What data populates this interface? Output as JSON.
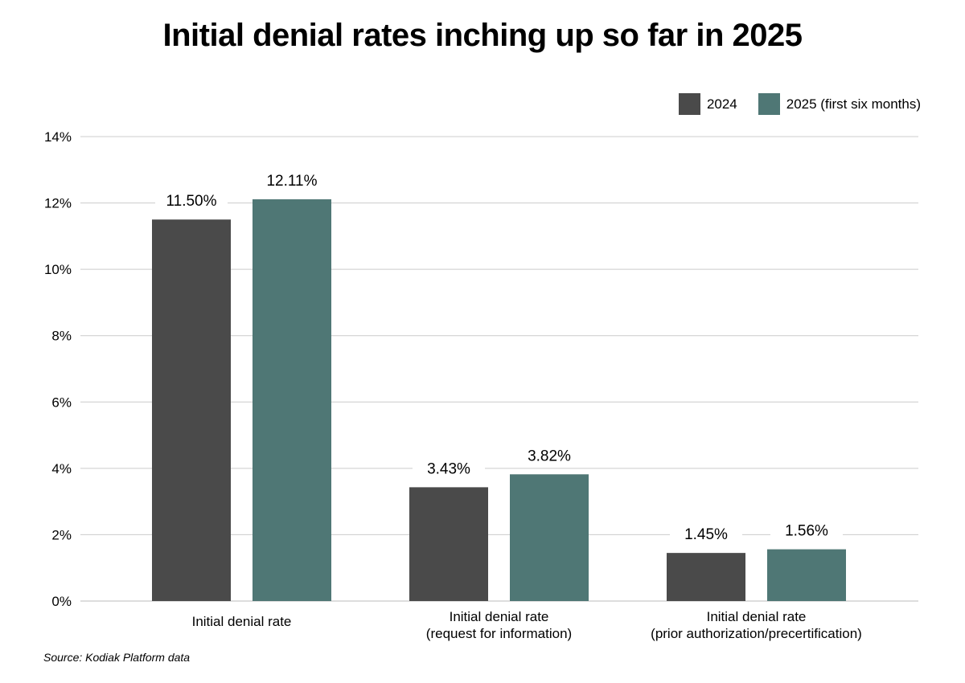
{
  "colors": {
    "series_2024": "#4a4a4a",
    "series_2025": "#4f7775",
    "grid": "#cccccc"
  },
  "chart_data": {
    "type": "bar",
    "title": "Initial denial rates inching up so far in 2025",
    "source": "Source: Kodiak Platform data",
    "legend_position": "top-right",
    "grid": true,
    "ylim": [
      0,
      14
    ],
    "yticks": [
      0,
      2,
      4,
      6,
      8,
      10,
      12,
      14
    ],
    "ytick_labels": [
      "0%",
      "2%",
      "4%",
      "6%",
      "8%",
      "10%",
      "12%",
      "14%"
    ],
    "categories": [
      [
        "Initial denial rate"
      ],
      [
        "Initial denial rate",
        "(request for information)"
      ],
      [
        "Initial denial rate",
        "(prior authorization/precertification)"
      ]
    ],
    "series": [
      {
        "name": "2024",
        "values": [
          11.5,
          3.43,
          1.45
        ],
        "labels": [
          "11.50%",
          "3.43%",
          "1.45%"
        ]
      },
      {
        "name": "2025 (first six months)",
        "values": [
          12.11,
          3.82,
          1.56
        ],
        "labels": [
          "12.11%",
          "3.82%",
          "1.56%"
        ]
      }
    ]
  }
}
